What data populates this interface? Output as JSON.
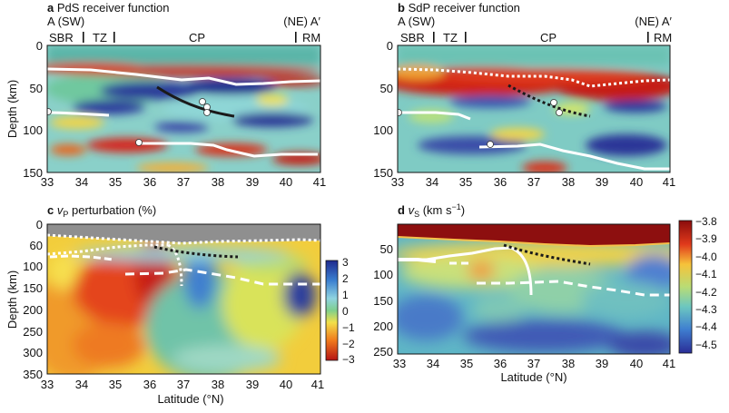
{
  "panels": [
    {
      "letter": "a",
      "title": "PdS receiver function",
      "profile_left": "A (SW)",
      "profile_right": "(NE) A′",
      "provinces": [
        "SBR",
        "TZ",
        "CP",
        "RM"
      ],
      "ylabel": "Depth (km)",
      "y_ticks": [
        "0",
        "50",
        "100",
        "150"
      ],
      "x_ticks": [
        "33",
        "34",
        "35",
        "36",
        "37",
        "38",
        "39",
        "40",
        "41"
      ]
    },
    {
      "letter": "b",
      "title": "SdP receiver function",
      "profile_left": "A (SW)",
      "profile_right": "(NE) A′",
      "provinces": [
        "SBR",
        "TZ",
        "CP",
        "RM"
      ],
      "y_ticks": [
        "0",
        "50",
        "100",
        "150"
      ],
      "x_ticks": [
        "33",
        "34",
        "35",
        "36",
        "37",
        "38",
        "39",
        "40",
        "41"
      ]
    },
    {
      "letter": "c",
      "title_prefix": "v",
      "title_sub": "P",
      "title_suffix": " perturbation (%)",
      "ylabel": "Depth (km)",
      "xlabel": "Latitude (°N)",
      "y_ticks": [
        "0",
        "60",
        "100",
        "150",
        "200",
        "250",
        "300",
        "350"
      ],
      "x_ticks": [
        "33",
        "34",
        "35",
        "36",
        "37",
        "38",
        "39",
        "40",
        "41"
      ],
      "colorbar_ticks": [
        "3",
        "2",
        "1",
        "0",
        "−1",
        "−2",
        "−3"
      ]
    },
    {
      "letter": "d",
      "title_prefix": "v",
      "title_sub": "S",
      "title_suffix": " (km s",
      "title_sup": "−1",
      "title_close": ")",
      "xlabel": "Latitude (°N)",
      "y_ticks": [
        "50",
        "100",
        "150",
        "200",
        "250"
      ],
      "x_ticks": [
        "33",
        "34",
        "35",
        "36",
        "37",
        "38",
        "39",
        "40",
        "41"
      ],
      "colorbar_ticks": [
        "−3.8",
        "−3.9",
        "−4.0",
        "−4.1",
        "−4.2",
        "−4.3",
        "−4.4",
        "−4.5"
      ]
    }
  ],
  "colors": {
    "pos": "#b01717",
    "neg": "#1f2a8c",
    "mid": "#8ad0c9",
    "neutral": "#5fae8f",
    "lab_line": "#ffffff",
    "slab_line": "#1a1a1a",
    "sediment_gray": "#8f8f8f"
  }
}
